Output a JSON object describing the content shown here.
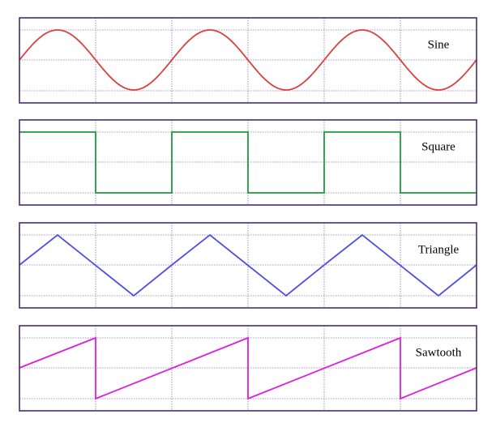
{
  "panels": [
    {
      "label": "Sine"
    },
    {
      "label": "Square"
    },
    {
      "label": "Triangle"
    },
    {
      "label": "Sawtooth"
    }
  ]
}
